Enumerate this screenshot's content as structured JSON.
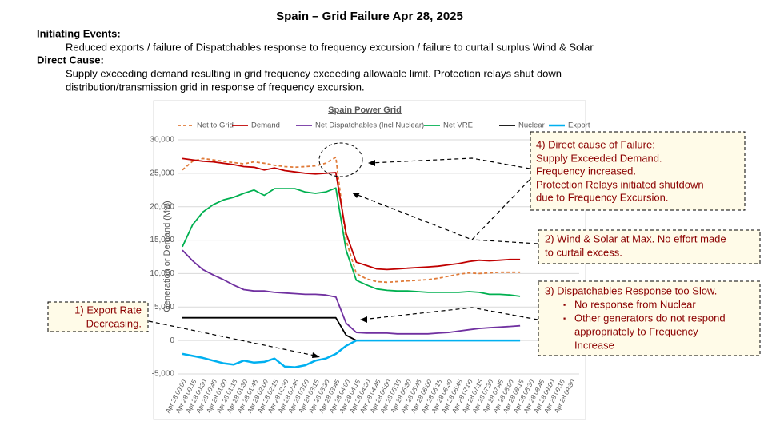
{
  "header": {
    "title": "Spain – Grid Failure Apr 28, 2025",
    "initiating_label": "Initiating Events:",
    "initiating_text": "Reduced exports / failure of Dispatchables response to frequency excursion / failure to curtail surplus Wind & Solar",
    "direct_label": "Direct Cause:",
    "direct_lines": [
      "Supply exceeding demand resulting in grid frequency exceeding allowable limit. Protection relays shut down",
      "distribution/transmission grid in response of frequency excursion."
    ]
  },
  "chart_data": {
    "type": "line",
    "title": "Spain Power Grid",
    "y_label": "Generation or Demand (Mw)",
    "ylim": [
      -5000,
      30000
    ],
    "yticks": [
      {
        "value": -5000,
        "label": "-5,000"
      },
      0,
      {
        "value": 5000,
        "label": "5,000"
      },
      {
        "value": 10000,
        "label": "10,000"
      },
      {
        "value": 15000,
        "label": "15,000"
      },
      {
        "value": 20000,
        "label": "20,000"
      },
      {
        "value": 25000,
        "label": "25,000"
      },
      {
        "value": 30000,
        "label": "30,000"
      }
    ],
    "grid": true,
    "legend": "top",
    "categories": [
      "Apr 28 00:00",
      "Apr 28 00:15",
      "Apr 28 00:30",
      "Apr 28 00:45",
      "Apr 28 01:00",
      "Apr 28 01:15",
      "Apr 28 01:30",
      "Apr 28 01:45",
      "Apr 28 02:00",
      "Apr 28 02:15",
      "Apr 28 02:30",
      "Apr 28 02:45",
      "Apr 28 03:00",
      "Apr 28 03:15",
      "Apr 28 03:30",
      "Apr 28 03:45",
      "Apr 28 04:00",
      "Apr 28 04:15",
      "Apr 28 04:30",
      "Apr 28 04:45",
      "Apr 28 05:00",
      "Apr 28 05:15",
      "Apr 28 05:30",
      "Apr 28 05:45",
      "Apr 28 06:00",
      "Apr 28 06:15",
      "Apr 28 06:30",
      "Apr 28 06:45",
      "Apr 28 07:00",
      "Apr 28 07:15",
      "Apr 28 07:30",
      "Apr 28 07:45",
      "Apr 28 08:00",
      "Apr 28 08:15",
      "Apr 28 08:30",
      "Apr 28 08:45",
      "Apr 28 09:00",
      "Apr 28 09:15",
      "Apr 28 09:30"
    ],
    "series": [
      {
        "name": "Net to Grid",
        "color": "#e07b39",
        "dashed": true,
        "values": [
          25500,
          26800,
          27200,
          27000,
          26800,
          26600,
          26400,
          26700,
          26500,
          26200,
          26000,
          25900,
          26000,
          26100,
          26500,
          27400,
          15000,
          10000,
          9200,
          8800,
          8700,
          8800,
          8900,
          9000,
          9100,
          9300,
          9600,
          9900,
          10100,
          10000,
          10100,
          10200,
          10200,
          10200,
          null,
          null,
          null,
          null,
          null
        ]
      },
      {
        "name": "Demand",
        "color": "#c00000",
        "values": [
          27200,
          27000,
          26800,
          26700,
          26500,
          26300,
          26000,
          25900,
          25500,
          25800,
          25400,
          25200,
          25000,
          24900,
          25000,
          25100,
          16000,
          11700,
          11200,
          10700,
          10600,
          10700,
          10800,
          10900,
          11000,
          11100,
          11300,
          11500,
          11800,
          12000,
          11900,
          12000,
          12100,
          12100,
          null,
          null,
          null,
          null,
          null
        ]
      },
      {
        "name": "Net Dispatchables (Incl Nuclear)",
        "color": "#7030a0",
        "values": [
          13500,
          11900,
          10600,
          9800,
          9100,
          8300,
          7600,
          7400,
          7400,
          7200,
          7100,
          7000,
          6900,
          6900,
          6800,
          6500,
          2600,
          1200,
          1100,
          1100,
          1100,
          1000,
          1000,
          1000,
          1000,
          1100,
          1200,
          1400,
          1600,
          1800,
          1900,
          2000,
          2100,
          2200,
          null,
          null,
          null,
          null,
          null
        ]
      },
      {
        "name": "Net VRE",
        "color": "#00b050",
        "values": [
          14000,
          17300,
          19200,
          20300,
          21000,
          21400,
          22000,
          22500,
          21700,
          22700,
          22700,
          22700,
          22200,
          22000,
          22200,
          22800,
          13500,
          9000,
          8300,
          7700,
          7500,
          7400,
          7400,
          7300,
          7200,
          7200,
          7200,
          7200,
          7300,
          7200,
          6900,
          6900,
          6800,
          6600,
          null,
          null,
          null,
          null,
          null
        ]
      },
      {
        "name": "Nuclear",
        "color": "#000000",
        "values": [
          3400,
          3400,
          3400,
          3400,
          3400,
          3400,
          3400,
          3400,
          3400,
          3400,
          3400,
          3400,
          3400,
          3400,
          3400,
          3400,
          800,
          0,
          null,
          null,
          null,
          null,
          null,
          null,
          null,
          null,
          null,
          null,
          null,
          null,
          null,
          null,
          null,
          null,
          null,
          null,
          null,
          null,
          null
        ]
      },
      {
        "name": "Export",
        "color": "#00b0f0",
        "width": 2.5,
        "values": [
          -2000,
          -2300,
          -2600,
          -3000,
          -3400,
          -3600,
          -3000,
          -3300,
          -3200,
          -2700,
          -3900,
          -4000,
          -3700,
          -3000,
          -2700,
          -2000,
          -800,
          0,
          0,
          0,
          0,
          0,
          0,
          0,
          0,
          0,
          0,
          0,
          0,
          0,
          0,
          0,
          0,
          0,
          null,
          null,
          null,
          null,
          null
        ]
      }
    ]
  },
  "annotations": {
    "direct_cause": [
      "4) Direct cause of Failure:",
      "Supply Exceeded Demand.",
      "Frequency increased.",
      "Protection Relays initiated shutdown",
      "due to Frequency Excursion."
    ],
    "wind_solar": [
      "2) Wind & Solar at Max. No effort made",
      "to curtail excess."
    ],
    "dispatchables": [
      "3) Dispatchables Response too Slow.",
      "No response from Nuclear",
      "Other generators do not respond",
      "appropriately to Frequency",
      "Increase"
    ],
    "export": [
      "1) Export Rate",
      "Decreasing."
    ]
  }
}
